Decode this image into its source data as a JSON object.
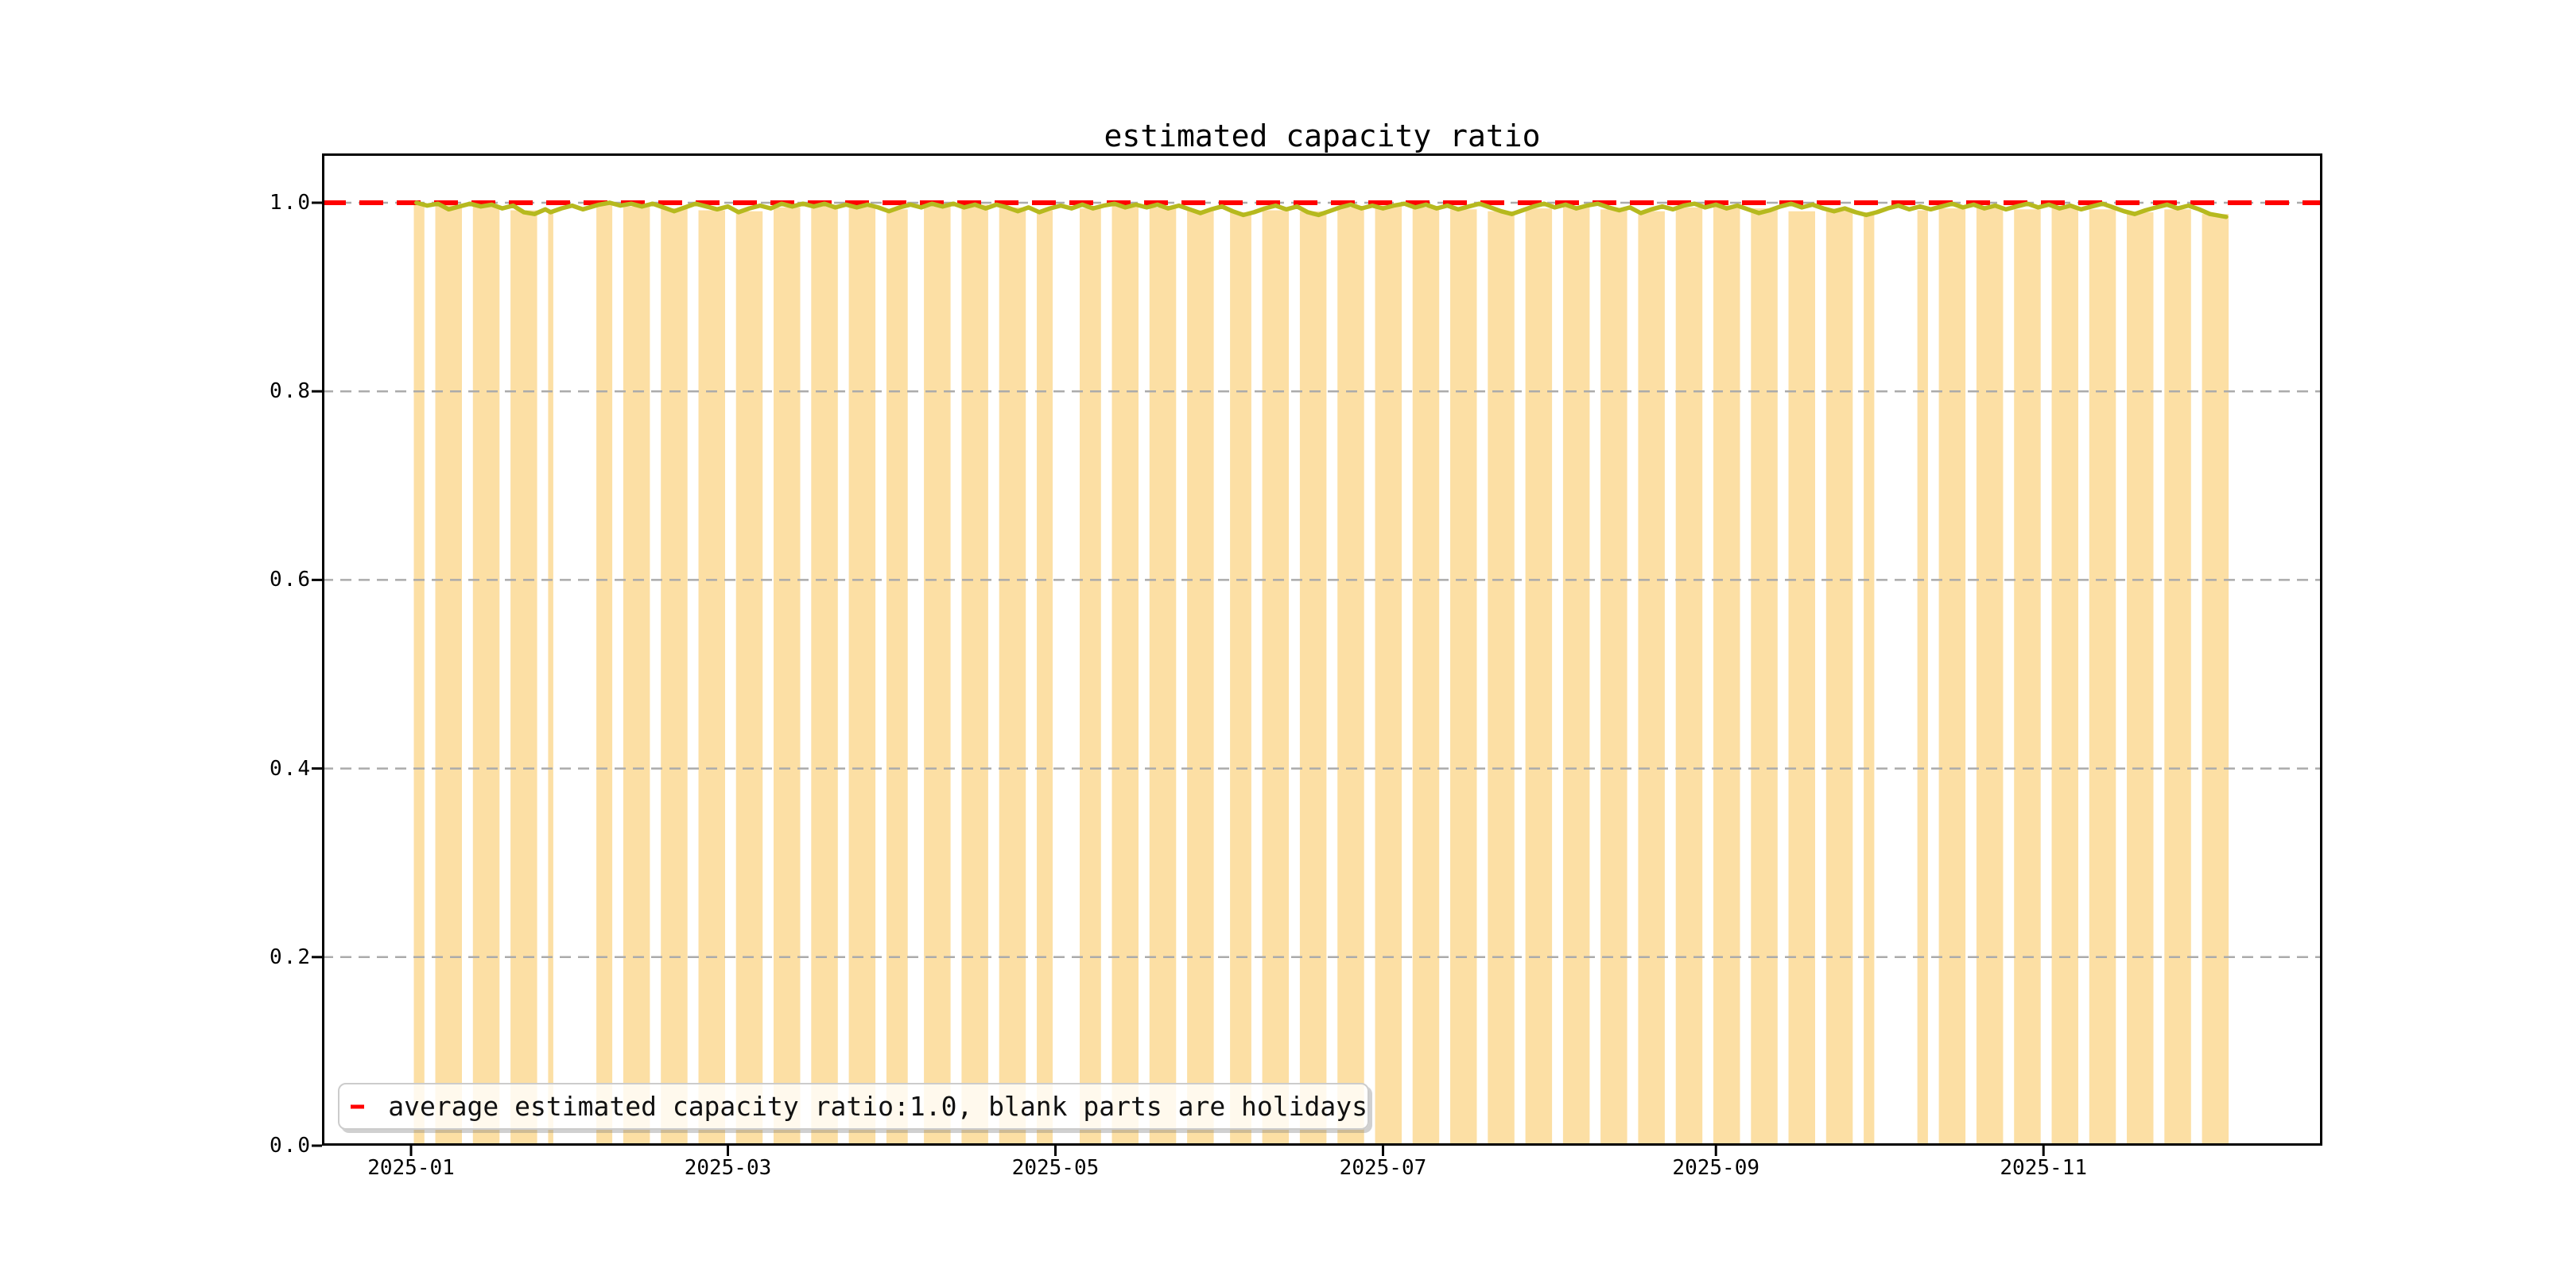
{
  "chart_data": {
    "type": "bar+line",
    "title": "estimated capacity ratio",
    "legend_label": "average estimated capacity ratio:1.0, blank parts are holidays",
    "legend_position": "lower left",
    "grid": true,
    "x_unit": "day_of_year_2025",
    "xlim_days": [
      -15.6,
      356.9
    ],
    "ylim": [
      0.0,
      1.052
    ],
    "xticks": [
      {
        "label": "2025-01",
        "day_of_year": 1
      },
      {
        "label": "2025-03",
        "day_of_year": 60
      },
      {
        "label": "2025-05",
        "day_of_year": 121
      },
      {
        "label": "2025-07",
        "day_of_year": 182
      },
      {
        "label": "2025-09",
        "day_of_year": 244
      },
      {
        "label": "2025-11",
        "day_of_year": 305
      }
    ],
    "yticks": [
      {
        "label": "0.0",
        "value": 0.0
      },
      {
        "label": "0.2",
        "value": 0.2
      },
      {
        "label": "0.4",
        "value": 0.4
      },
      {
        "label": "0.6",
        "value": 0.6
      },
      {
        "label": "0.8",
        "value": 0.8
      },
      {
        "label": "1.0",
        "value": 1.0
      }
    ],
    "grid_values": [
      0.2,
      0.4,
      0.6,
      0.8,
      1.0
    ],
    "average_line_value": 1.0,
    "colors": {
      "bar": "#fcdfa4",
      "line": "#b6b91e",
      "average": "#ff0000",
      "grid": "#ababab",
      "frame": "#000000",
      "legend_border": "#cccccc"
    },
    "bars_note_blank_parts": "holidays",
    "bars": [
      [
        2,
        3,
        0.999
      ],
      [
        6,
        10,
        0.998
      ],
      [
        13,
        17,
        0.997
      ],
      [
        20,
        24,
        0.992
      ],
      [
        27,
        27,
        0.99
      ],
      [
        36,
        38,
        0.998
      ],
      [
        41,
        45,
        0.996
      ],
      [
        48,
        52,
        0.994
      ],
      [
        55,
        59,
        0.992
      ],
      [
        62,
        66,
        0.991
      ],
      [
        69,
        73,
        0.995
      ],
      [
        76,
        80,
        0.998
      ],
      [
        83,
        87,
        0.996
      ],
      [
        90,
        93,
        0.993
      ],
      [
        97,
        101,
        0.996
      ],
      [
        104,
        108,
        0.998
      ],
      [
        111,
        115,
        0.995
      ],
      [
        118,
        120,
        0.992
      ],
      [
        126,
        129,
        0.994
      ],
      [
        132,
        136,
        0.997
      ],
      [
        139,
        143,
        0.995
      ],
      [
        146,
        150,
        0.992
      ],
      [
        154,
        157,
        0.99
      ],
      [
        160,
        164,
        0.992
      ],
      [
        167,
        171,
        0.991
      ],
      [
        174,
        178,
        0.995
      ],
      [
        181,
        185,
        0.997
      ],
      [
        188,
        192,
        0.995
      ],
      [
        195,
        199,
        0.993
      ],
      [
        202,
        206,
        0.991
      ],
      [
        209,
        213,
        0.994
      ],
      [
        216,
        220,
        0.996
      ],
      [
        223,
        227,
        0.993
      ],
      [
        230,
        234,
        0.991
      ],
      [
        237,
        241,
        0.995
      ],
      [
        244,
        248,
        0.997
      ],
      [
        251,
        255,
        0.994
      ],
      [
        258,
        262,
        0.991
      ],
      [
        265,
        269,
        0.993
      ],
      [
        272,
        273,
        0.99
      ],
      [
        282,
        283,
        0.992
      ],
      [
        286,
        290,
        0.994
      ],
      [
        293,
        297,
        0.996
      ],
      [
        300,
        304,
        0.993
      ],
      [
        307,
        311,
        0.995
      ],
      [
        314,
        318,
        0.993
      ],
      [
        321,
        325,
        0.99
      ],
      [
        328,
        332,
        0.993
      ],
      [
        335,
        339,
        0.988
      ]
    ],
    "line_series": {
      "name": "estimated capacity ratio",
      "points": [
        [
          2,
          1.0
        ],
        [
          4,
          0.997
        ],
        [
          6,
          0.999
        ],
        [
          8,
          0.993
        ],
        [
          10,
          0.996
        ],
        [
          12,
          0.999
        ],
        [
          14,
          0.996
        ],
        [
          16,
          0.998
        ],
        [
          18,
          0.994
        ],
        [
          20,
          0.997
        ],
        [
          22,
          0.99
        ],
        [
          24,
          0.988
        ],
        [
          26,
          0.993
        ],
        [
          27,
          0.99
        ],
        [
          29,
          0.994
        ],
        [
          31,
          0.997
        ],
        [
          33,
          0.993
        ],
        [
          36,
          0.998
        ],
        [
          38,
          1.0
        ],
        [
          40,
          0.997
        ],
        [
          42,
          0.999
        ],
        [
          44,
          0.996
        ],
        [
          46,
          0.999
        ],
        [
          48,
          0.995
        ],
        [
          50,
          0.991
        ],
        [
          52,
          0.995
        ],
        [
          54,
          0.999
        ],
        [
          56,
          0.996
        ],
        [
          58,
          0.993
        ],
        [
          60,
          0.996
        ],
        [
          62,
          0.99
        ],
        [
          64,
          0.994
        ],
        [
          66,
          0.997
        ],
        [
          68,
          0.994
        ],
        [
          70,
          0.999
        ],
        [
          72,
          0.996
        ],
        [
          74,
          0.999
        ],
        [
          76,
          0.996
        ],
        [
          78,
          0.999
        ],
        [
          80,
          0.995
        ],
        [
          82,
          0.998
        ],
        [
          84,
          0.995
        ],
        [
          86,
          0.998
        ],
        [
          88,
          0.995
        ],
        [
          90,
          0.991
        ],
        [
          92,
          0.995
        ],
        [
          94,
          0.998
        ],
        [
          96,
          0.995
        ],
        [
          98,
          0.999
        ],
        [
          100,
          0.996
        ],
        [
          102,
          0.999
        ],
        [
          104,
          0.995
        ],
        [
          106,
          0.998
        ],
        [
          108,
          0.994
        ],
        [
          110,
          0.998
        ],
        [
          112,
          0.995
        ],
        [
          114,
          0.991
        ],
        [
          116,
          0.995
        ],
        [
          118,
          0.99
        ],
        [
          120,
          0.994
        ],
        [
          122,
          0.997
        ],
        [
          124,
          0.994
        ],
        [
          126,
          0.998
        ],
        [
          128,
          0.994
        ],
        [
          130,
          0.997
        ],
        [
          132,
          0.999
        ],
        [
          134,
          0.995
        ],
        [
          136,
          0.998
        ],
        [
          138,
          0.995
        ],
        [
          140,
          0.998
        ],
        [
          142,
          0.994
        ],
        [
          144,
          0.997
        ],
        [
          146,
          0.993
        ],
        [
          148,
          0.989
        ],
        [
          150,
          0.993
        ],
        [
          152,
          0.996
        ],
        [
          154,
          0.991
        ],
        [
          156,
          0.987
        ],
        [
          158,
          0.99
        ],
        [
          160,
          0.994
        ],
        [
          162,
          0.997
        ],
        [
          164,
          0.993
        ],
        [
          166,
          0.996
        ],
        [
          168,
          0.99
        ],
        [
          170,
          0.987
        ],
        [
          172,
          0.991
        ],
        [
          174,
          0.995
        ],
        [
          176,
          0.998
        ],
        [
          178,
          0.994
        ],
        [
          180,
          0.997
        ],
        [
          182,
          0.994
        ],
        [
          184,
          0.997
        ],
        [
          186,
          0.999
        ],
        [
          188,
          0.995
        ],
        [
          190,
          0.998
        ],
        [
          192,
          0.994
        ],
        [
          194,
          0.997
        ],
        [
          196,
          0.993
        ],
        [
          198,
          0.996
        ],
        [
          200,
          0.999
        ],
        [
          202,
          0.995
        ],
        [
          204,
          0.991
        ],
        [
          206,
          0.988
        ],
        [
          208,
          0.992
        ],
        [
          210,
          0.996
        ],
        [
          212,
          0.999
        ],
        [
          214,
          0.995
        ],
        [
          216,
          0.998
        ],
        [
          218,
          0.994
        ],
        [
          220,
          0.997
        ],
        [
          222,
          0.999
        ],
        [
          224,
          0.995
        ],
        [
          226,
          0.992
        ],
        [
          228,
          0.995
        ],
        [
          230,
          0.989
        ],
        [
          232,
          0.993
        ],
        [
          234,
          0.996
        ],
        [
          236,
          0.993
        ],
        [
          238,
          0.997
        ],
        [
          240,
          0.999
        ],
        [
          242,
          0.995
        ],
        [
          244,
          0.998
        ],
        [
          246,
          0.994
        ],
        [
          248,
          0.997
        ],
        [
          250,
          0.993
        ],
        [
          252,
          0.989
        ],
        [
          254,
          0.992
        ],
        [
          256,
          0.996
        ],
        [
          258,
          0.999
        ],
        [
          260,
          0.995
        ],
        [
          262,
          0.998
        ],
        [
          264,
          0.994
        ],
        [
          266,
          0.991
        ],
        [
          268,
          0.994
        ],
        [
          270,
          0.99
        ],
        [
          272,
          0.987
        ],
        [
          274,
          0.99
        ],
        [
          276,
          0.994
        ],
        [
          278,
          0.997
        ],
        [
          280,
          0.993
        ],
        [
          282,
          0.996
        ],
        [
          284,
          0.993
        ],
        [
          286,
          0.996
        ],
        [
          288,
          0.999
        ],
        [
          290,
          0.995
        ],
        [
          292,
          0.998
        ],
        [
          294,
          0.994
        ],
        [
          296,
          0.997
        ],
        [
          298,
          0.993
        ],
        [
          300,
          0.996
        ],
        [
          302,
          0.999
        ],
        [
          304,
          0.995
        ],
        [
          306,
          0.998
        ],
        [
          308,
          0.994
        ],
        [
          310,
          0.997
        ],
        [
          312,
          0.993
        ],
        [
          314,
          0.996
        ],
        [
          316,
          0.999
        ],
        [
          318,
          0.995
        ],
        [
          320,
          0.991
        ],
        [
          322,
          0.988
        ],
        [
          324,
          0.992
        ],
        [
          326,
          0.995
        ],
        [
          328,
          0.998
        ],
        [
          330,
          0.994
        ],
        [
          332,
          0.997
        ],
        [
          334,
          0.993
        ],
        [
          336,
          0.988
        ],
        [
          338,
          0.986
        ],
        [
          339,
          0.985
        ]
      ]
    }
  }
}
